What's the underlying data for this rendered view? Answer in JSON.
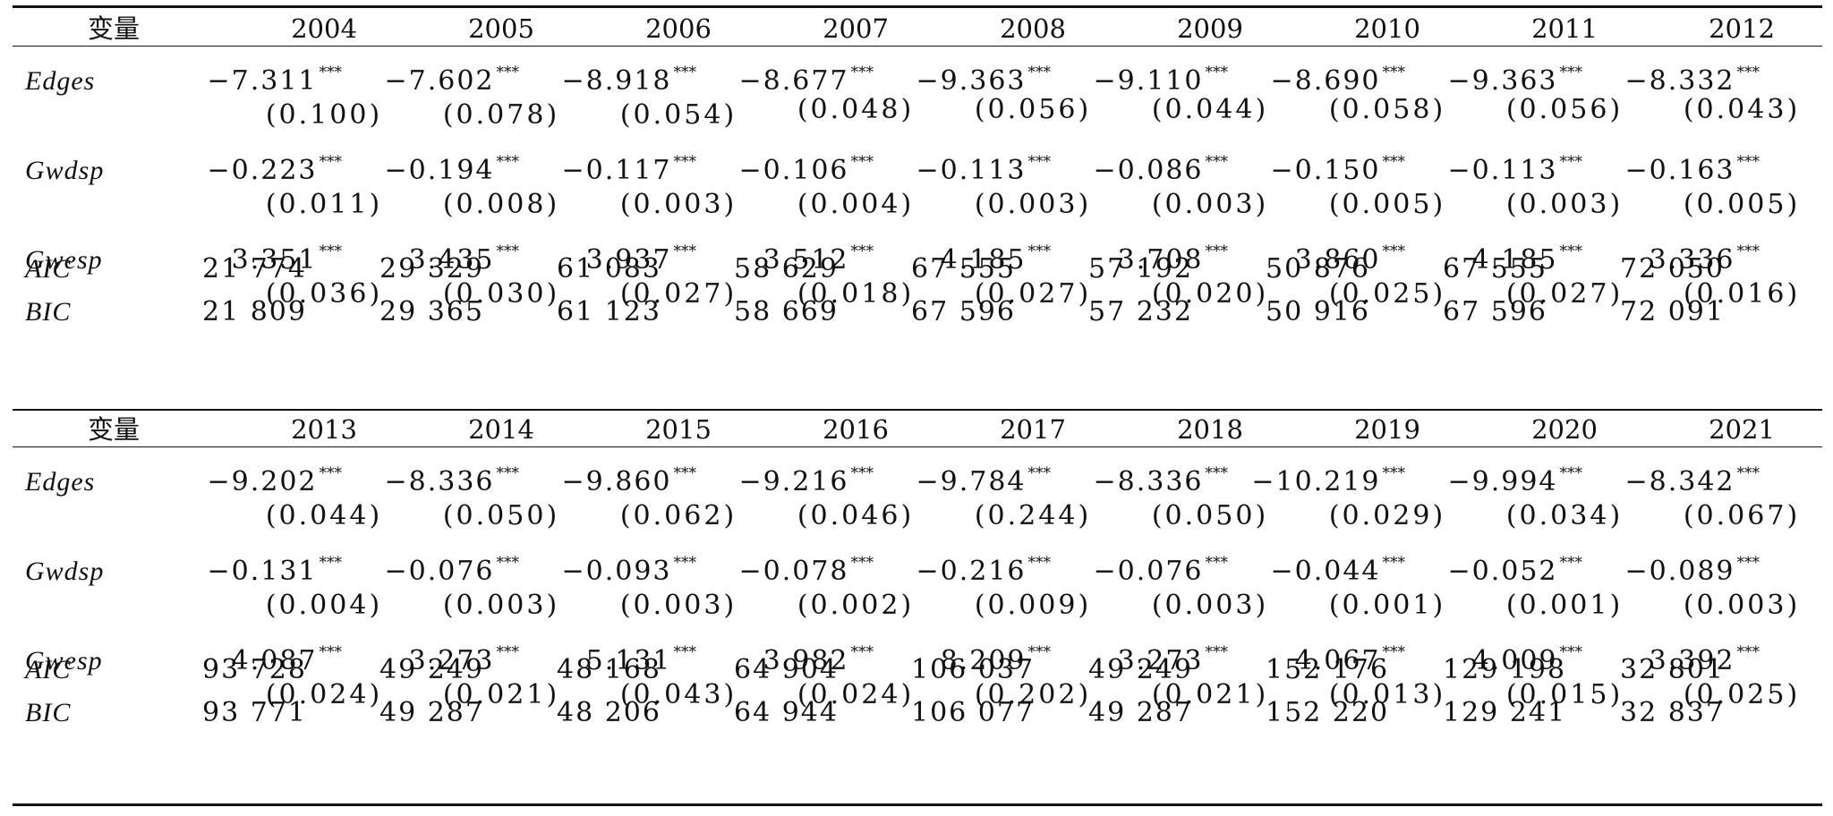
{
  "blocks": [
    {
      "header": {
        "label": "变量",
        "years": [
          "2004",
          "2005",
          "2006",
          "2007",
          "2008",
          "2009",
          "2010",
          "2011",
          "2012"
        ]
      },
      "rows": [
        {
          "variable": "Edges",
          "coefs": [
            "−7.311",
            "−7.602",
            "−8.918",
            "−8.677",
            "−9.363",
            "−9.110",
            "−8.690",
            "−9.363",
            "−8.332"
          ],
          "stars": [
            "***",
            "***",
            "***",
            "***",
            "***",
            "***",
            "***",
            "***",
            "***"
          ],
          "ses": [
            "(0.100)",
            "(0.078)",
            "(0.054)",
            "(0.048)",
            "(0.056)",
            "(0.044)",
            "(0.058)",
            "(0.056)",
            "(0.043)"
          ]
        },
        {
          "variable": "Gwdsp",
          "coefs": [
            "−0.223",
            "−0.194",
            "−0.117",
            "−0.106",
            "−0.113",
            "−0.086",
            "−0.150",
            "−0.113",
            "−0.163"
          ],
          "stars": [
            "***",
            "***",
            "***",
            "***",
            "***",
            "***",
            "***",
            "***",
            "***"
          ],
          "ses": [
            "(0.011)",
            "(0.008)",
            "(0.003)",
            "(0.004)",
            "(0.003)",
            "(0.003)",
            "(0.005)",
            "(0.003)",
            "(0.005)"
          ]
        },
        {
          "variable": "Gwesp",
          "coefs": [
            "3.351",
            "3.435",
            "3.937",
            "3.512",
            "4.185",
            "3.708",
            "3.860",
            "4.185",
            "3.336"
          ],
          "stars": [
            "***",
            "***",
            "***",
            "***",
            "***",
            "***",
            "***",
            "***",
            "***"
          ],
          "ses": [
            "(0.036)",
            "(0.030)",
            "(0.027)",
            "(0.018)",
            "(0.027)",
            "(0.020)",
            "(0.025)",
            "(0.027)",
            "(0.016)"
          ]
        }
      ],
      "ic": [
        {
          "variable": "AIC",
          "values": [
            "21 774",
            "29 329",
            "61 083",
            "58 629",
            "67 555",
            "57 192",
            "50 876",
            "67 555",
            "72 050"
          ]
        },
        {
          "variable": "BIC",
          "values": [
            "21 809",
            "29 365",
            "61 123",
            "58 669",
            "67 596",
            "57 232",
            "50 916",
            "67 596",
            "72 091"
          ]
        }
      ]
    },
    {
      "header": {
        "label": "变量",
        "years": [
          "2013",
          "2014",
          "2015",
          "2016",
          "2017",
          "2018",
          "2019",
          "2020",
          "2021"
        ]
      },
      "rows": [
        {
          "variable": "Edges",
          "coefs": [
            "−9.202",
            "−8.336",
            "−9.860",
            "−9.216",
            "−9.784",
            "−8.336",
            "−10.219",
            "−9.994",
            "−8.342"
          ],
          "stars": [
            "***",
            "***",
            "***",
            "***",
            "***",
            "***",
            "***",
            "***",
            "***"
          ],
          "ses": [
            "(0.044)",
            "(0.050)",
            "(0.062)",
            "(0.046)",
            "(0.244)",
            "(0.050)",
            "(0.029)",
            "(0.034)",
            "(0.067)"
          ]
        },
        {
          "variable": "Gwdsp",
          "coefs": [
            "−0.131",
            "−0.076",
            "−0.093",
            "−0.078",
            "−0.216",
            "−0.076",
            "−0.044",
            "−0.052",
            "−0.089"
          ],
          "stars": [
            "***",
            "***",
            "***",
            "***",
            "***",
            "***",
            "***",
            "***",
            "***"
          ],
          "ses": [
            "(0.004)",
            "(0.003)",
            "(0.003)",
            "(0.002)",
            "(0.009)",
            "(0.003)",
            "(0.001)",
            "(0.001)",
            "(0.003)"
          ]
        },
        {
          "variable": "Gwesp",
          "coefs": [
            "4.087",
            "3.273",
            "5.131",
            "3.982",
            "8.209",
            "3.273",
            "4.067",
            "4.009",
            "3.392"
          ],
          "stars": [
            "***",
            "***",
            "***",
            "***",
            "***",
            "***",
            "***",
            "***",
            "***"
          ],
          "ses": [
            "(0.024)",
            "(0.021)",
            "(0.043)",
            "(0.024)",
            "(0.202)",
            "(0.021)",
            "(0.013)",
            "(0.015)",
            "(0.025)"
          ]
        }
      ],
      "ic": [
        {
          "variable": "AIC",
          "values": [
            "93 728",
            "49 249",
            "48 168",
            "64 904",
            "106 037",
            "49 249",
            "152 176",
            "129 198",
            "32 801"
          ]
        },
        {
          "variable": "BIC",
          "values": [
            "93 771",
            "49 287",
            "48 206",
            "64 944",
            "106 077",
            "49 287",
            "152 220",
            "129 241",
            "32 837"
          ]
        }
      ]
    }
  ]
}
